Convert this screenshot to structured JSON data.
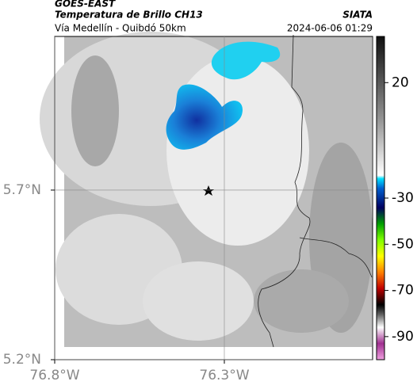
{
  "header": {
    "title": "GOES-EAST",
    "subtitle": "Temperatura de Brillo CH13",
    "source": "SIATA",
    "region": "Vía Medellín - Quibdó 50km",
    "datetime": "2024-06-06 01:29"
  },
  "map": {
    "xlim": [
      -76.8,
      -75.863
    ],
    "ylim": [
      5.2,
      6.153
    ],
    "xticks": [
      {
        "value": -76.8,
        "label": "76.8°W"
      },
      {
        "value": -76.3,
        "label": "76.3°W"
      }
    ],
    "yticks": [
      {
        "value": 5.7,
        "label": "5.7°N"
      },
      {
        "value": 5.2,
        "label": "5.2°N"
      }
    ],
    "grid": true
  },
  "colorbar": {
    "lim": [
      -100,
      40
    ],
    "ticks": [
      20,
      -30,
      -50,
      -70,
      -90
    ]
  }
}
